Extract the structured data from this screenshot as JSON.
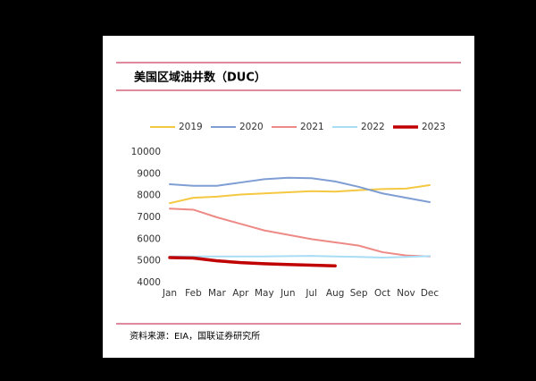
{
  "chart_data": {
    "type": "line",
    "title": "美国区域油井数（DUC）",
    "source": "资料来源：EIA，国联证券研究所",
    "categories": [
      "Jan",
      "Feb",
      "Mar",
      "Apr",
      "May",
      "Jun",
      "Jul",
      "Aug",
      "Sep",
      "Oct",
      "Nov",
      "Dec"
    ],
    "series": [
      {
        "name": "2019",
        "color": "#f5c842",
        "width": 2,
        "values": [
          7650,
          7900,
          7950,
          8050,
          8100,
          8150,
          8200,
          8180,
          8250,
          8300,
          8320,
          8480
        ]
      },
      {
        "name": "2020",
        "color": "#7f9ed4",
        "width": 2,
        "values": [
          8520,
          8450,
          8450,
          8600,
          8750,
          8820,
          8800,
          8650,
          8400,
          8100,
          7900,
          7700
        ]
      },
      {
        "name": "2021",
        "color": "#ee8a86",
        "width": 2,
        "values": [
          7400,
          7350,
          7000,
          6700,
          6400,
          6200,
          6000,
          5850,
          5700,
          5400,
          5250,
          5200
        ]
      },
      {
        "name": "2022",
        "color": "#a9ddf5",
        "width": 2,
        "values": [
          5200,
          5200,
          5200,
          5200,
          5200,
          5220,
          5230,
          5200,
          5180,
          5150,
          5180,
          5220
        ]
      },
      {
        "name": "2023",
        "color": "#c00000",
        "width": 3.5,
        "values": [
          5150,
          5130,
          5000,
          4920,
          4870,
          4830,
          4800,
          4770,
          null,
          null,
          null,
          null
        ]
      }
    ],
    "ylim": [
      4000,
      10000
    ],
    "yticks": [
      4000,
      5000,
      6000,
      7000,
      8000,
      9000,
      10000
    ]
  }
}
